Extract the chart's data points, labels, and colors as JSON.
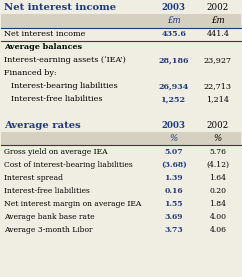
{
  "title": "Net interest income",
  "blue_color": "#1f3a7a",
  "bg_color": "#f0ede3",
  "shaded_color": "#d6d0c0",
  "section3_rows": [
    [
      "Gross yield on average IEA",
      "5.07",
      "5.76"
    ],
    [
      "Cost of interest-bearing liabilities",
      "(3.68)",
      "(4.12)"
    ],
    [
      "Interest spread",
      "1.39",
      "1.64"
    ],
    [
      "Interest-free liabilities",
      "0.16",
      "0.20"
    ],
    [
      "Net interest margin on average IEA",
      "1.55",
      "1.84"
    ],
    [
      "Average bank base rate",
      "3.69",
      "4.00"
    ],
    [
      "Average 3-month Libor",
      "3.73",
      "4.06"
    ]
  ]
}
